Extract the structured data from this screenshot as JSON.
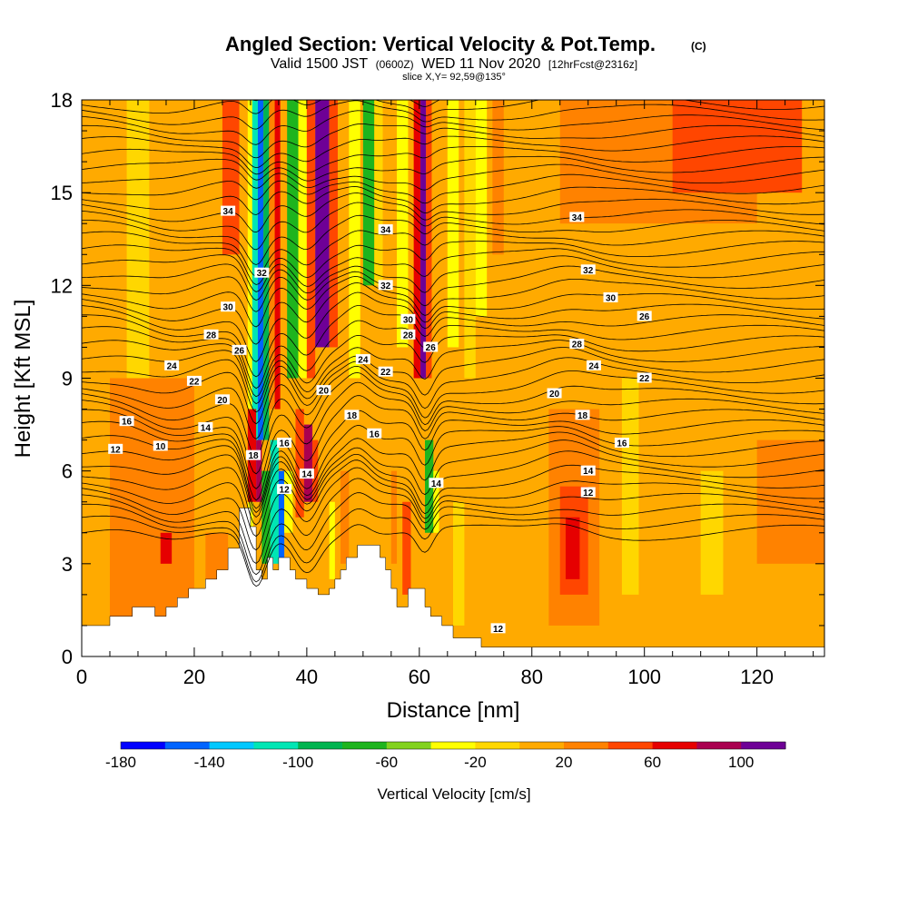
{
  "title": {
    "main": "Angled Section: Vertical Velocity & Pot.Temp.",
    "tag": "(C)",
    "valid_prefix": "Valid 1500 JST",
    "valid_z": "(0600Z)",
    "valid_date": "WED 11 Nov 2020",
    "forecast": "[12hrFcst@2316z]",
    "slice": "slice X,Y= 92,59@135°"
  },
  "chart_data": {
    "type": "heatmap",
    "xlabel": "Distance [nm]",
    "ylabel": "Height [Kft MSL]",
    "xlim": [
      0,
      132
    ],
    "ylim": [
      0,
      18
    ],
    "x_ticks": [
      "0",
      "20",
      "40",
      "60",
      "80",
      "100",
      "120"
    ],
    "y_ticks": [
      "0",
      "3",
      "6",
      "9",
      "12",
      "15",
      "18"
    ],
    "colorbar": {
      "title": "Vertical Velocity [cm/s]",
      "range": [
        -180,
        120
      ],
      "step": 20,
      "tick_labels": [
        "-180",
        "-140",
        "-100",
        "-60",
        "-20",
        "20",
        "60",
        "100"
      ],
      "colors": [
        "#0000ff",
        "#0064ff",
        "#00c8ff",
        "#00e6b4",
        "#00b450",
        "#1eb41e",
        "#82d21e",
        "#ffff00",
        "#ffd700",
        "#ffaa00",
        "#ff8200",
        "#ff4600",
        "#e60000",
        "#aa0050",
        "#6e0096"
      ]
    },
    "velocity_cells": [
      {
        "x0": 0,
        "x1": 132,
        "y0": 0,
        "y1": 18,
        "v": 5
      },
      {
        "x0": 8,
        "x1": 12,
        "y0": 0,
        "y1": 18,
        "v": -10
      },
      {
        "x0": 25,
        "x1": 28,
        "y0": 13,
        "y1": 18,
        "v": 50
      },
      {
        "x0": 29.5,
        "x1": 30.5,
        "y0": 4,
        "y1": 18,
        "v": -30
      },
      {
        "x0": 30.3,
        "x1": 31.3,
        "y0": 6,
        "y1": 18,
        "v": -120
      },
      {
        "x0": 31.3,
        "x1": 32.3,
        "y0": 7,
        "y1": 18,
        "v": -160
      },
      {
        "x0": 32.3,
        "x1": 33.3,
        "y0": 7,
        "y1": 18,
        "v": -90
      },
      {
        "x0": 33.3,
        "x1": 34.3,
        "y0": 8,
        "y1": 18,
        "v": 30
      },
      {
        "x0": 34.3,
        "x1": 35.3,
        "y0": 8,
        "y1": 18,
        "v": 60
      },
      {
        "x0": 35.3,
        "x1": 36.5,
        "y0": 8,
        "y1": 18,
        "v": 0
      },
      {
        "x0": 36.5,
        "x1": 38.5,
        "y0": 9,
        "y1": 18,
        "v": -70
      },
      {
        "x0": 38.5,
        "x1": 40,
        "y0": 9,
        "y1": 18,
        "v": -40
      },
      {
        "x0": 40,
        "x1": 41.5,
        "y0": 9,
        "y1": 18,
        "v": 50
      },
      {
        "x0": 41.5,
        "x1": 44,
        "y0": 10,
        "y1": 18,
        "v": 100
      },
      {
        "x0": 44,
        "x1": 45.5,
        "y0": 10,
        "y1": 18,
        "v": 40
      },
      {
        "x0": 47.5,
        "x1": 49.5,
        "y0": 9,
        "y1": 18,
        "v": -30
      },
      {
        "x0": 50,
        "x1": 52,
        "y0": 12,
        "y1": 18,
        "v": -80
      },
      {
        "x0": 52,
        "x1": 53.5,
        "y0": 12,
        "y1": 18,
        "v": -20
      },
      {
        "x0": 56,
        "x1": 58,
        "y0": 10,
        "y1": 18,
        "v": -30
      },
      {
        "x0": 59,
        "x1": 60.2,
        "y0": 9,
        "y1": 18,
        "v": 60
      },
      {
        "x0": 60.2,
        "x1": 61.2,
        "y0": 9,
        "y1": 18,
        "v": 100
      },
      {
        "x0": 61.2,
        "x1": 62.2,
        "y0": 9,
        "y1": 18,
        "v": 50
      },
      {
        "x0": 65,
        "x1": 67,
        "y0": 10,
        "y1": 18,
        "v": -30
      },
      {
        "x0": 68,
        "x1": 70,
        "y0": 9,
        "y1": 18,
        "v": -10
      },
      {
        "x0": 70,
        "x1": 72,
        "y0": 11,
        "y1": 18,
        "v": -30
      },
      {
        "x0": 73,
        "x1": 75,
        "y0": 13,
        "y1": 18,
        "v": 20
      },
      {
        "x0": 85,
        "x1": 120,
        "y0": 14,
        "y1": 18,
        "v": 30
      },
      {
        "x0": 105,
        "x1": 128,
        "y0": 15,
        "y1": 18,
        "v": 40
      },
      {
        "x0": 115,
        "x1": 132,
        "y0": 10,
        "y1": 14,
        "v": 10
      },
      {
        "x0": 90,
        "x1": 132,
        "y0": 12,
        "y1": 14,
        "v": 15
      },
      {
        "x0": 5,
        "x1": 20,
        "y0": 1,
        "y1": 9,
        "v": 20
      },
      {
        "x0": 22,
        "x1": 26,
        "y0": 2,
        "y1": 4,
        "v": 25
      },
      {
        "x0": 14,
        "x1": 16,
        "y0": 3,
        "y1": 4,
        "v": 60
      },
      {
        "x0": 29.5,
        "x1": 31,
        "y0": 5,
        "y1": 8,
        "v": 60
      },
      {
        "x0": 31,
        "x1": 32,
        "y0": 5,
        "y1": 7,
        "v": 80
      },
      {
        "x0": 32,
        "x1": 33.5,
        "y0": 3,
        "y1": 6,
        "v": -70
      },
      {
        "x0": 33.5,
        "x1": 35,
        "y0": 3,
        "y1": 7,
        "v": -110
      },
      {
        "x0": 35,
        "x1": 36,
        "y0": 3,
        "y1": 6,
        "v": -150
      },
      {
        "x0": 36,
        "x1": 37.5,
        "y0": 4,
        "y1": 6,
        "v": -40
      },
      {
        "x0": 38,
        "x1": 39.5,
        "y0": 4.5,
        "y1": 8,
        "v": 50
      },
      {
        "x0": 39.5,
        "x1": 41,
        "y0": 5,
        "y1": 7.5,
        "v": 90
      },
      {
        "x0": 41,
        "x1": 42,
        "y0": 5,
        "y1": 7,
        "v": 40
      },
      {
        "x0": 44,
        "x1": 45,
        "y0": 2.5,
        "y1": 5,
        "v": -30
      },
      {
        "x0": 46,
        "x1": 47.5,
        "y0": 3,
        "y1": 6,
        "v": 30
      },
      {
        "x0": 55,
        "x1": 56,
        "y0": 3,
        "y1": 6,
        "v": 30
      },
      {
        "x0": 57,
        "x1": 58.5,
        "y0": 2,
        "y1": 5,
        "v": 40
      },
      {
        "x0": 61,
        "x1": 62.5,
        "y0": 4,
        "y1": 7,
        "v": -70
      },
      {
        "x0": 62.5,
        "x1": 63.5,
        "y0": 4,
        "y1": 6,
        "v": -30
      },
      {
        "x0": 66,
        "x1": 68,
        "y0": 1,
        "y1": 5,
        "v": -20
      },
      {
        "x0": 83,
        "x1": 92,
        "y0": 1,
        "y1": 8,
        "v": 25
      },
      {
        "x0": 85,
        "x1": 90,
        "y0": 2,
        "y1": 5.5,
        "v": 50
      },
      {
        "x0": 86,
        "x1": 88.5,
        "y0": 2.5,
        "y1": 4.5,
        "v": 75
      },
      {
        "x0": 96,
        "x1": 99,
        "y0": 2,
        "y1": 9,
        "v": -10
      },
      {
        "x0": 100,
        "x1": 110,
        "y0": 1,
        "y1": 6,
        "v": 15
      },
      {
        "x0": 110,
        "x1": 114,
        "y0": 2,
        "y1": 6,
        "v": -10
      },
      {
        "x0": 120,
        "x1": 132,
        "y0": 3,
        "y1": 7,
        "v": 20
      }
    ],
    "terrain": [
      {
        "x": 0,
        "h": 0
      },
      {
        "x": 0,
        "h": 1
      },
      {
        "x": 5,
        "h": 1
      },
      {
        "x": 5,
        "h": 1.3
      },
      {
        "x": 9,
        "h": 1.3
      },
      {
        "x": 9,
        "h": 1.6
      },
      {
        "x": 13,
        "h": 1.6
      },
      {
        "x": 13,
        "h": 1.3
      },
      {
        "x": 15,
        "h": 1.3
      },
      {
        "x": 15,
        "h": 1.6
      },
      {
        "x": 17,
        "h": 1.6
      },
      {
        "x": 17,
        "h": 1.9
      },
      {
        "x": 19,
        "h": 1.9
      },
      {
        "x": 19,
        "h": 2.2
      },
      {
        "x": 22,
        "h": 2.2
      },
      {
        "x": 22,
        "h": 2.5
      },
      {
        "x": 24,
        "h": 2.5
      },
      {
        "x": 24,
        "h": 2.8
      },
      {
        "x": 26,
        "h": 2.8
      },
      {
        "x": 26,
        "h": 3.5
      },
      {
        "x": 28,
        "h": 3.5
      },
      {
        "x": 28,
        "h": 4.8
      },
      {
        "x": 30,
        "h": 4.8
      },
      {
        "x": 30,
        "h": 4.2
      },
      {
        "x": 31,
        "h": 4.2
      },
      {
        "x": 31,
        "h": 2.8
      },
      {
        "x": 32,
        "h": 2.8
      },
      {
        "x": 32,
        "h": 2.5
      },
      {
        "x": 33,
        "h": 2.5
      },
      {
        "x": 33,
        "h": 3.2
      },
      {
        "x": 34,
        "h": 3.2
      },
      {
        "x": 34,
        "h": 2.8
      },
      {
        "x": 35,
        "h": 2.8
      },
      {
        "x": 35,
        "h": 3.2
      },
      {
        "x": 37,
        "h": 3.2
      },
      {
        "x": 37,
        "h": 2.8
      },
      {
        "x": 38,
        "h": 2.8
      },
      {
        "x": 38,
        "h": 2.5
      },
      {
        "x": 40,
        "h": 2.5
      },
      {
        "x": 40,
        "h": 2.2
      },
      {
        "x": 42,
        "h": 2.2
      },
      {
        "x": 42,
        "h": 2.0
      },
      {
        "x": 44,
        "h": 2.0
      },
      {
        "x": 44,
        "h": 2.2
      },
      {
        "x": 45,
        "h": 2.2
      },
      {
        "x": 45,
        "h": 2.5
      },
      {
        "x": 46,
        "h": 2.5
      },
      {
        "x": 46,
        "h": 2.8
      },
      {
        "x": 47,
        "h": 2.8
      },
      {
        "x": 47,
        "h": 3.2
      },
      {
        "x": 49,
        "h": 3.2
      },
      {
        "x": 49,
        "h": 3.6
      },
      {
        "x": 53,
        "h": 3.6
      },
      {
        "x": 53,
        "h": 3.2
      },
      {
        "x": 54,
        "h": 3.2
      },
      {
        "x": 54,
        "h": 2.8
      },
      {
        "x": 55,
        "h": 2.8
      },
      {
        "x": 55,
        "h": 2.2
      },
      {
        "x": 56,
        "h": 2.2
      },
      {
        "x": 56,
        "h": 1.6
      },
      {
        "x": 58,
        "h": 1.6
      },
      {
        "x": 58,
        "h": 2.2
      },
      {
        "x": 61,
        "h": 2.2
      },
      {
        "x": 61,
        "h": 1.6
      },
      {
        "x": 62,
        "h": 1.6
      },
      {
        "x": 62,
        "h": 1.3
      },
      {
        "x": 64,
        "h": 1.3
      },
      {
        "x": 64,
        "h": 1.0
      },
      {
        "x": 66,
        "h": 1.0
      },
      {
        "x": 66,
        "h": 0.6
      },
      {
        "x": 71,
        "h": 0.6
      },
      {
        "x": 71,
        "h": 0.3
      },
      {
        "x": 132,
        "h": 0.3
      },
      {
        "x": 132,
        "h": 0
      }
    ],
    "theta_contours": {
      "levels_start": 8,
      "levels_step": 0.5,
      "count": 55,
      "base_height": 4.0,
      "height_step": 0.34,
      "perturbations": [
        {
          "x": 16,
          "width": 7,
          "amp": -0.6
        },
        {
          "x": 31,
          "width": 2.5,
          "amp": -2.2
        },
        {
          "x": 40,
          "width": 3,
          "amp": -1.4
        },
        {
          "x": 49,
          "width": 3,
          "amp": 0.6
        },
        {
          "x": 61,
          "width": 2,
          "amp": -1.0
        },
        {
          "x": 86,
          "width": 6,
          "amp": 0.4
        }
      ]
    },
    "contour_labels": [
      {
        "text": "34",
        "x": 26,
        "y": 14.4
      },
      {
        "text": "34",
        "x": 54,
        "y": 13.8
      },
      {
        "text": "34",
        "x": 88,
        "y": 14.2
      },
      {
        "text": "32",
        "x": 32,
        "y": 12.4
      },
      {
        "text": "32",
        "x": 54,
        "y": 12.0
      },
      {
        "text": "32",
        "x": 90,
        "y": 12.5
      },
      {
        "text": "30",
        "x": 26,
        "y": 11.3
      },
      {
        "text": "30",
        "x": 58,
        "y": 10.9
      },
      {
        "text": "30",
        "x": 94,
        "y": 11.6
      },
      {
        "text": "28",
        "x": 23,
        "y": 10.4
      },
      {
        "text": "28",
        "x": 58,
        "y": 10.4
      },
      {
        "text": "28",
        "x": 88,
        "y": 10.1
      },
      {
        "text": "26",
        "x": 28,
        "y": 9.9
      },
      {
        "text": "26",
        "x": 62,
        "y": 10.0
      },
      {
        "text": "26",
        "x": 100,
        "y": 11.0
      },
      {
        "text": "24",
        "x": 16,
        "y": 9.4
      },
      {
        "text": "24",
        "x": 50,
        "y": 9.6
      },
      {
        "text": "24",
        "x": 91,
        "y": 9.4
      },
      {
        "text": "22",
        "x": 20,
        "y": 8.9
      },
      {
        "text": "22",
        "x": 54,
        "y": 9.2
      },
      {
        "text": "22",
        "x": 100,
        "y": 9.0
      },
      {
        "text": "20",
        "x": 25,
        "y": 8.3
      },
      {
        "text": "20",
        "x": 43,
        "y": 8.6
      },
      {
        "text": "20",
        "x": 84,
        "y": 8.5
      },
      {
        "text": "18",
        "x": 48,
        "y": 7.8
      },
      {
        "text": "18",
        "x": 89,
        "y": 7.8
      },
      {
        "text": "16",
        "x": 8,
        "y": 7.6
      },
      {
        "text": "16",
        "x": 36,
        "y": 6.9
      },
      {
        "text": "16",
        "x": 52,
        "y": 7.2
      },
      {
        "text": "16",
        "x": 96,
        "y": 6.9
      },
      {
        "text": "14",
        "x": 22,
        "y": 7.4
      },
      {
        "text": "14",
        "x": 40,
        "y": 5.9
      },
      {
        "text": "14",
        "x": 63,
        "y": 5.6
      },
      {
        "text": "14",
        "x": 90,
        "y": 6.0
      },
      {
        "text": "12",
        "x": 6,
        "y": 6.7
      },
      {
        "text": "12",
        "x": 36,
        "y": 5.4
      },
      {
        "text": "12",
        "x": 90,
        "y": 5.3
      },
      {
        "text": "12",
        "x": 74,
        "y": 0.9
      },
      {
        "text": "10",
        "x": 14,
        "y": 6.8
      },
      {
        "text": "18",
        "x": 30.5,
        "y": 6.5
      }
    ]
  }
}
